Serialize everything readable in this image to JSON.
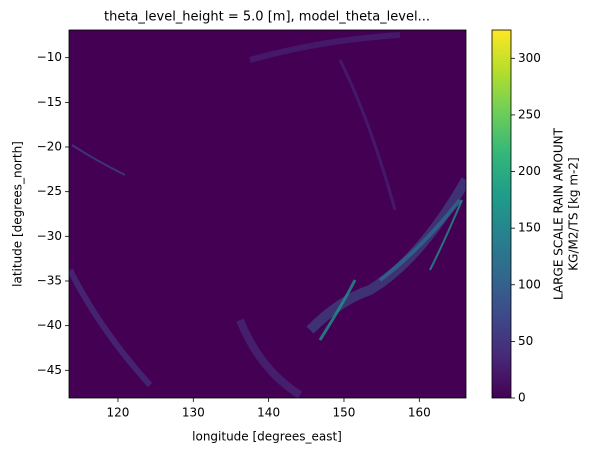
{
  "chart_data": {
    "type": "heatmap",
    "title": "theta_level_height = 5.0 [m], model_theta_level...",
    "xlabel": "longitude [degrees_east]",
    "ylabel": "latitude [degrees_north]",
    "xlim": [
      113.5,
      166.2
    ],
    "xticks": [
      120,
      130,
      140,
      150,
      160
    ],
    "ylim": [
      -48.1,
      -6.9
    ],
    "yticks": [
      -10,
      -15,
      -20,
      -25,
      -30,
      -35,
      -40,
      -45
    ],
    "colorbar": {
      "label": [
        "LARGE SCALE RAIN AMOUNT",
        "KG/M2/TS [kg m-2]"
      ],
      "lim": [
        0,
        325
      ],
      "ticks": [
        0,
        50,
        100,
        150,
        200,
        250,
        300
      ]
    },
    "colormap": "viridis"
  }
}
